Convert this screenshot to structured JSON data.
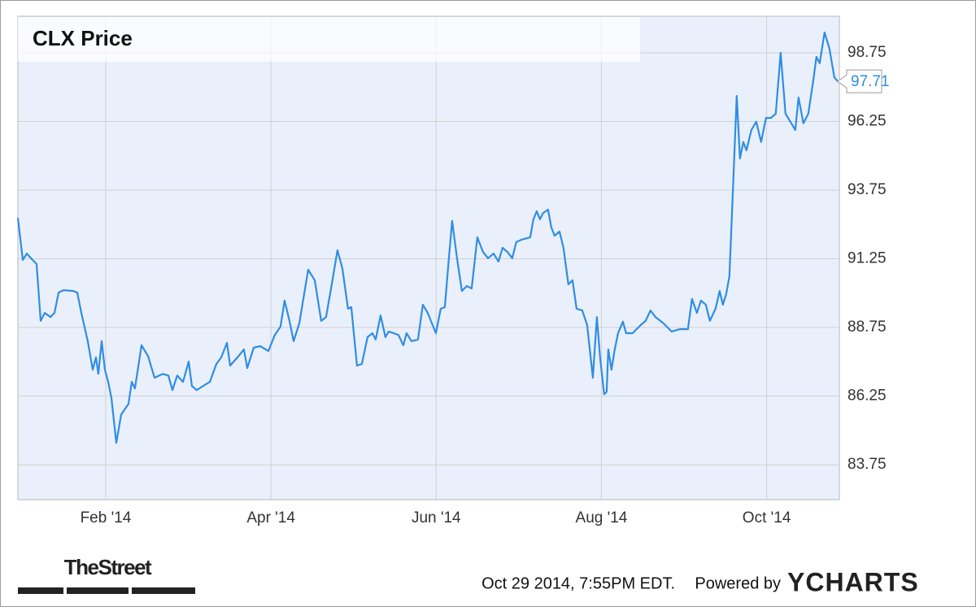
{
  "chart_data": {
    "type": "line",
    "title": "CLX Price",
    "x": [
      0.937,
      0.996,
      1.045,
      1.114,
      1.163,
      1.213,
      1.262,
      1.331,
      1.38,
      1.429,
      1.488,
      1.606,
      1.656,
      1.705,
      1.783,
      1.843,
      1.882,
      1.911,
      1.951,
      1.99,
      2.03,
      2.069,
      2.128,
      2.187,
      2.276,
      2.315,
      2.354,
      2.433,
      2.512,
      2.591,
      2.689,
      2.758,
      2.807,
      2.866,
      2.935,
      3.004,
      3.043,
      3.102,
      3.181,
      3.26,
      3.339,
      3.398,
      3.467,
      3.506,
      3.594,
      3.673,
      3.713,
      3.791,
      3.87,
      3.969,
      4.047,
      4.116,
      4.165,
      4.224,
      4.274,
      4.343,
      4.451,
      4.53,
      4.608,
      4.667,
      4.736,
      4.805,
      4.864,
      4.933,
      4.972,
      5.041,
      5.1,
      5.169,
      5.228,
      5.268,
      5.327,
      5.386,
      5.425,
      5.484,
      5.543,
      5.602,
      5.642,
      5.701,
      5.78,
      5.839,
      5.898,
      5.996,
      6.055,
      6.104,
      6.154,
      6.193,
      6.252,
      6.311,
      6.37,
      6.429,
      6.498,
      6.567,
      6.626,
      6.695,
      6.754,
      6.803,
      6.862,
      6.921,
      6.97,
      7.039,
      7.138,
      7.177,
      7.217,
      7.256,
      7.295,
      7.354,
      7.394,
      7.433,
      7.492,
      7.541,
      7.6,
      7.65,
      7.699,
      7.768,
      7.827,
      7.896,
      7.945,
      7.984,
      8.033,
      8.063,
      8.083,
      8.122,
      8.161,
      8.201,
      8.26,
      8.299,
      8.378,
      8.476,
      8.535,
      8.594,
      8.654,
      8.752,
      8.85,
      8.949,
      9.047,
      9.096,
      9.156,
      9.205,
      9.264,
      9.313,
      9.382,
      9.431,
      9.47,
      9.51,
      9.549,
      9.589,
      9.638,
      9.677,
      9.717,
      9.756,
      9.815,
      9.874,
      9.933,
      9.992,
      10.051,
      10.11,
      10.169,
      10.228,
      10.287,
      10.346,
      10.386,
      10.445,
      10.504,
      10.563,
      10.602,
      10.642,
      10.701,
      10.76,
      10.819,
      10.858
    ],
    "series": [
      {
        "name": "CLX Price",
        "color": "#2f8de4",
        "values": [
          92.74,
          91.21,
          91.44,
          91.21,
          91.06,
          88.99,
          89.28,
          89.13,
          89.28,
          90.02,
          90.11,
          90.08,
          90.02,
          89.28,
          88.25,
          87.21,
          87.66,
          87.06,
          88.25,
          87.21,
          86.77,
          86.18,
          84.55,
          85.58,
          85.97,
          86.77,
          86.53,
          88.1,
          87.71,
          86.92,
          87.06,
          87.0,
          86.47,
          87.0,
          86.77,
          87.51,
          86.62,
          86.47,
          86.62,
          86.77,
          87.42,
          87.66,
          88.19,
          87.36,
          87.66,
          87.95,
          87.27,
          88.01,
          88.07,
          87.89,
          88.48,
          88.78,
          89.73,
          88.99,
          88.25,
          88.9,
          90.85,
          90.47,
          88.99,
          89.13,
          90.32,
          91.56,
          90.91,
          89.43,
          89.49,
          87.36,
          87.42,
          88.4,
          88.54,
          88.31,
          89.19,
          88.4,
          88.6,
          88.54,
          88.48,
          88.1,
          88.54,
          88.25,
          88.31,
          89.58,
          89.28,
          88.54,
          89.43,
          89.49,
          91.27,
          92.63,
          91.27,
          90.08,
          90.26,
          90.17,
          92.03,
          91.5,
          91.27,
          91.44,
          91.15,
          91.65,
          91.5,
          91.27,
          91.86,
          91.95,
          92.03,
          92.69,
          92.98,
          92.69,
          92.92,
          93.04,
          92.39,
          92.09,
          92.24,
          91.65,
          90.32,
          90.47,
          89.43,
          89.37,
          88.84,
          86.92,
          89.13,
          87.66,
          86.32,
          86.41,
          87.95,
          87.21,
          87.95,
          88.54,
          88.96,
          88.54,
          88.54,
          88.84,
          88.99,
          89.37,
          89.13,
          88.9,
          88.6,
          88.69,
          88.69,
          89.79,
          89.28,
          89.73,
          89.58,
          88.99,
          89.43,
          90.08,
          89.58,
          89.96,
          90.61,
          93.57,
          97.18,
          94.9,
          95.5,
          95.2,
          95.94,
          96.24,
          95.5,
          96.38,
          96.38,
          96.53,
          98.75,
          96.53,
          96.24,
          95.94,
          97.12,
          96.18,
          96.53,
          97.71,
          98.6,
          98.37,
          99.49,
          98.9,
          97.86,
          97.71
        ]
      }
    ],
    "xlim": [
      0.937,
      10.88
    ],
    "xticks": [
      {
        "value": 2,
        "label": "Feb '14"
      },
      {
        "value": 4,
        "label": "Apr '14"
      },
      {
        "value": 6,
        "label": "Jun '14"
      },
      {
        "value": 8,
        "label": "Aug '14"
      },
      {
        "value": 10,
        "label": "Oct '14"
      }
    ],
    "ylim": [
      82.48,
      100.08
    ],
    "yticks": [
      83.75,
      86.25,
      88.75,
      91.25,
      93.75,
      96.25,
      98.75
    ],
    "grid": true
  },
  "footer": {
    "source_logo": "TheStreet",
    "timestamp": "Oct 29 2014, 7:55PM EDT.",
    "powered_by": "Powered by",
    "brand": "YCHARTS"
  }
}
